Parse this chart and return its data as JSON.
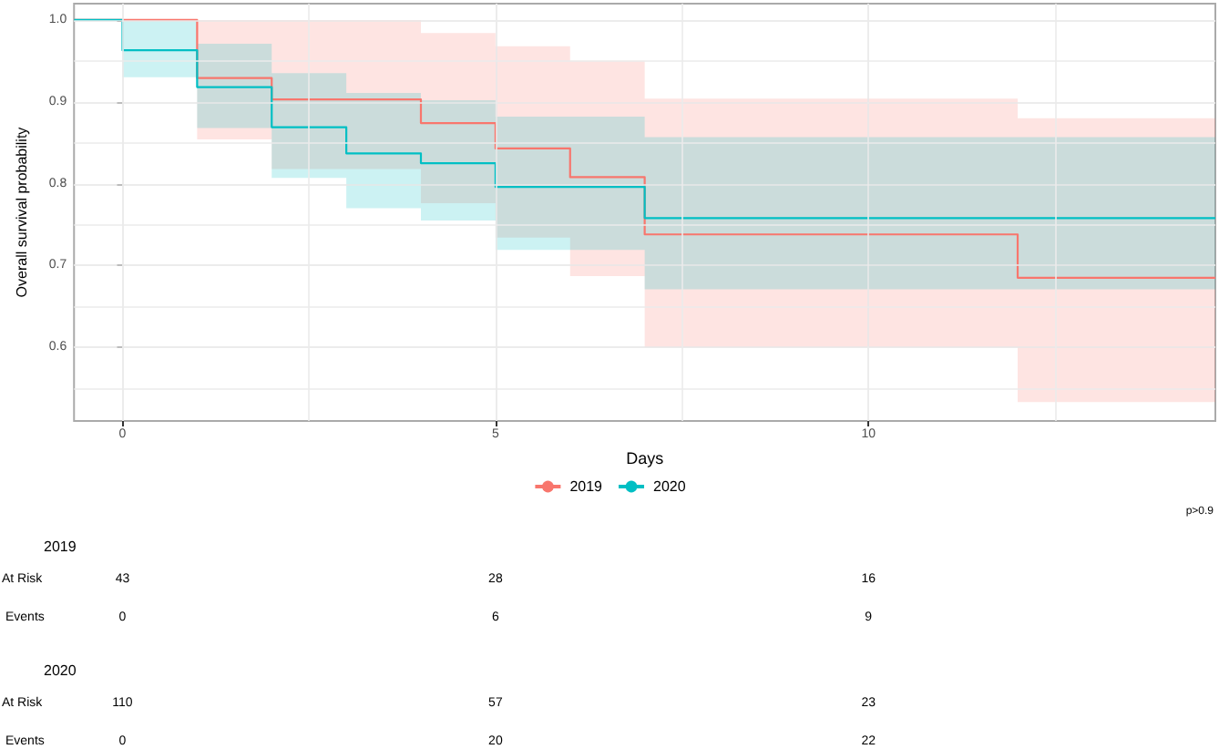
{
  "chart_data": {
    "type": "step",
    "xlabel": "Days",
    "ylabel": "Overall survival probability",
    "xlim": [
      -0.65,
      14.65
    ],
    "xticks": [
      0,
      {
        "value": 2.5,
        "label": null
      },
      5,
      {
        "value": 7.5,
        "label": null
      },
      10,
      {
        "value": 12.5,
        "label": null
      }
    ],
    "ylim": [
      0.51,
      1.02
    ],
    "yticks": [
      {
        "value": 0.55,
        "label": null
      },
      0.6,
      {
        "value": 0.65,
        "label": null
      },
      0.7,
      {
        "value": 0.75,
        "label": null
      },
      0.8,
      {
        "value": 0.85,
        "label": null
      },
      0.9,
      {
        "value": 0.95,
        "label": null
      },
      {
        "value": 1,
        "label": "1.0"
      }
    ],
    "grid": true,
    "legend": "bottom",
    "marker": "none",
    "line_style": "solid",
    "series": [
      {
        "name": "2019",
        "color": "#f8766d",
        "x": [
          -0.65,
          1,
          2,
          4,
          5,
          6,
          7,
          12,
          14.65
        ],
        "values": [
          1,
          0.929,
          0.903,
          0.874,
          0.843,
          0.808,
          0.738,
          0.685,
          0.685
        ],
        "upper": [
          1,
          1,
          1,
          0.984,
          0.968,
          0.95,
          0.904,
          0.88,
          0.88
        ],
        "lower": [
          1,
          0.854,
          0.818,
          0.776,
          0.734,
          0.687,
          0.6,
          0.533,
          0.533
        ]
      },
      {
        "name": "2020",
        "color": "#00bfc4",
        "x": [
          -0.65,
          0,
          1,
          2,
          3,
          4,
          5,
          7,
          14.65
        ],
        "values": [
          1,
          0.963,
          0.918,
          0.869,
          0.837,
          0.825,
          0.796,
          0.758,
          0.758
        ],
        "upper": [
          1,
          1,
          0.971,
          0.935,
          0.911,
          0.902,
          0.882,
          0.857,
          0.857
        ],
        "lower": [
          1,
          0.93,
          0.868,
          0.807,
          0.77,
          0.755,
          0.719,
          0.671,
          0.671
        ]
      }
    ],
    "annotations": [
      "p>0.9",
      "2019",
      "At Risk",
      "43",
      "28",
      "16",
      "Events",
      "0",
      "6",
      "9",
      "2020",
      "At Risk",
      "110",
      "57",
      "23",
      "Events",
      "0",
      "20",
      "22"
    ]
  }
}
